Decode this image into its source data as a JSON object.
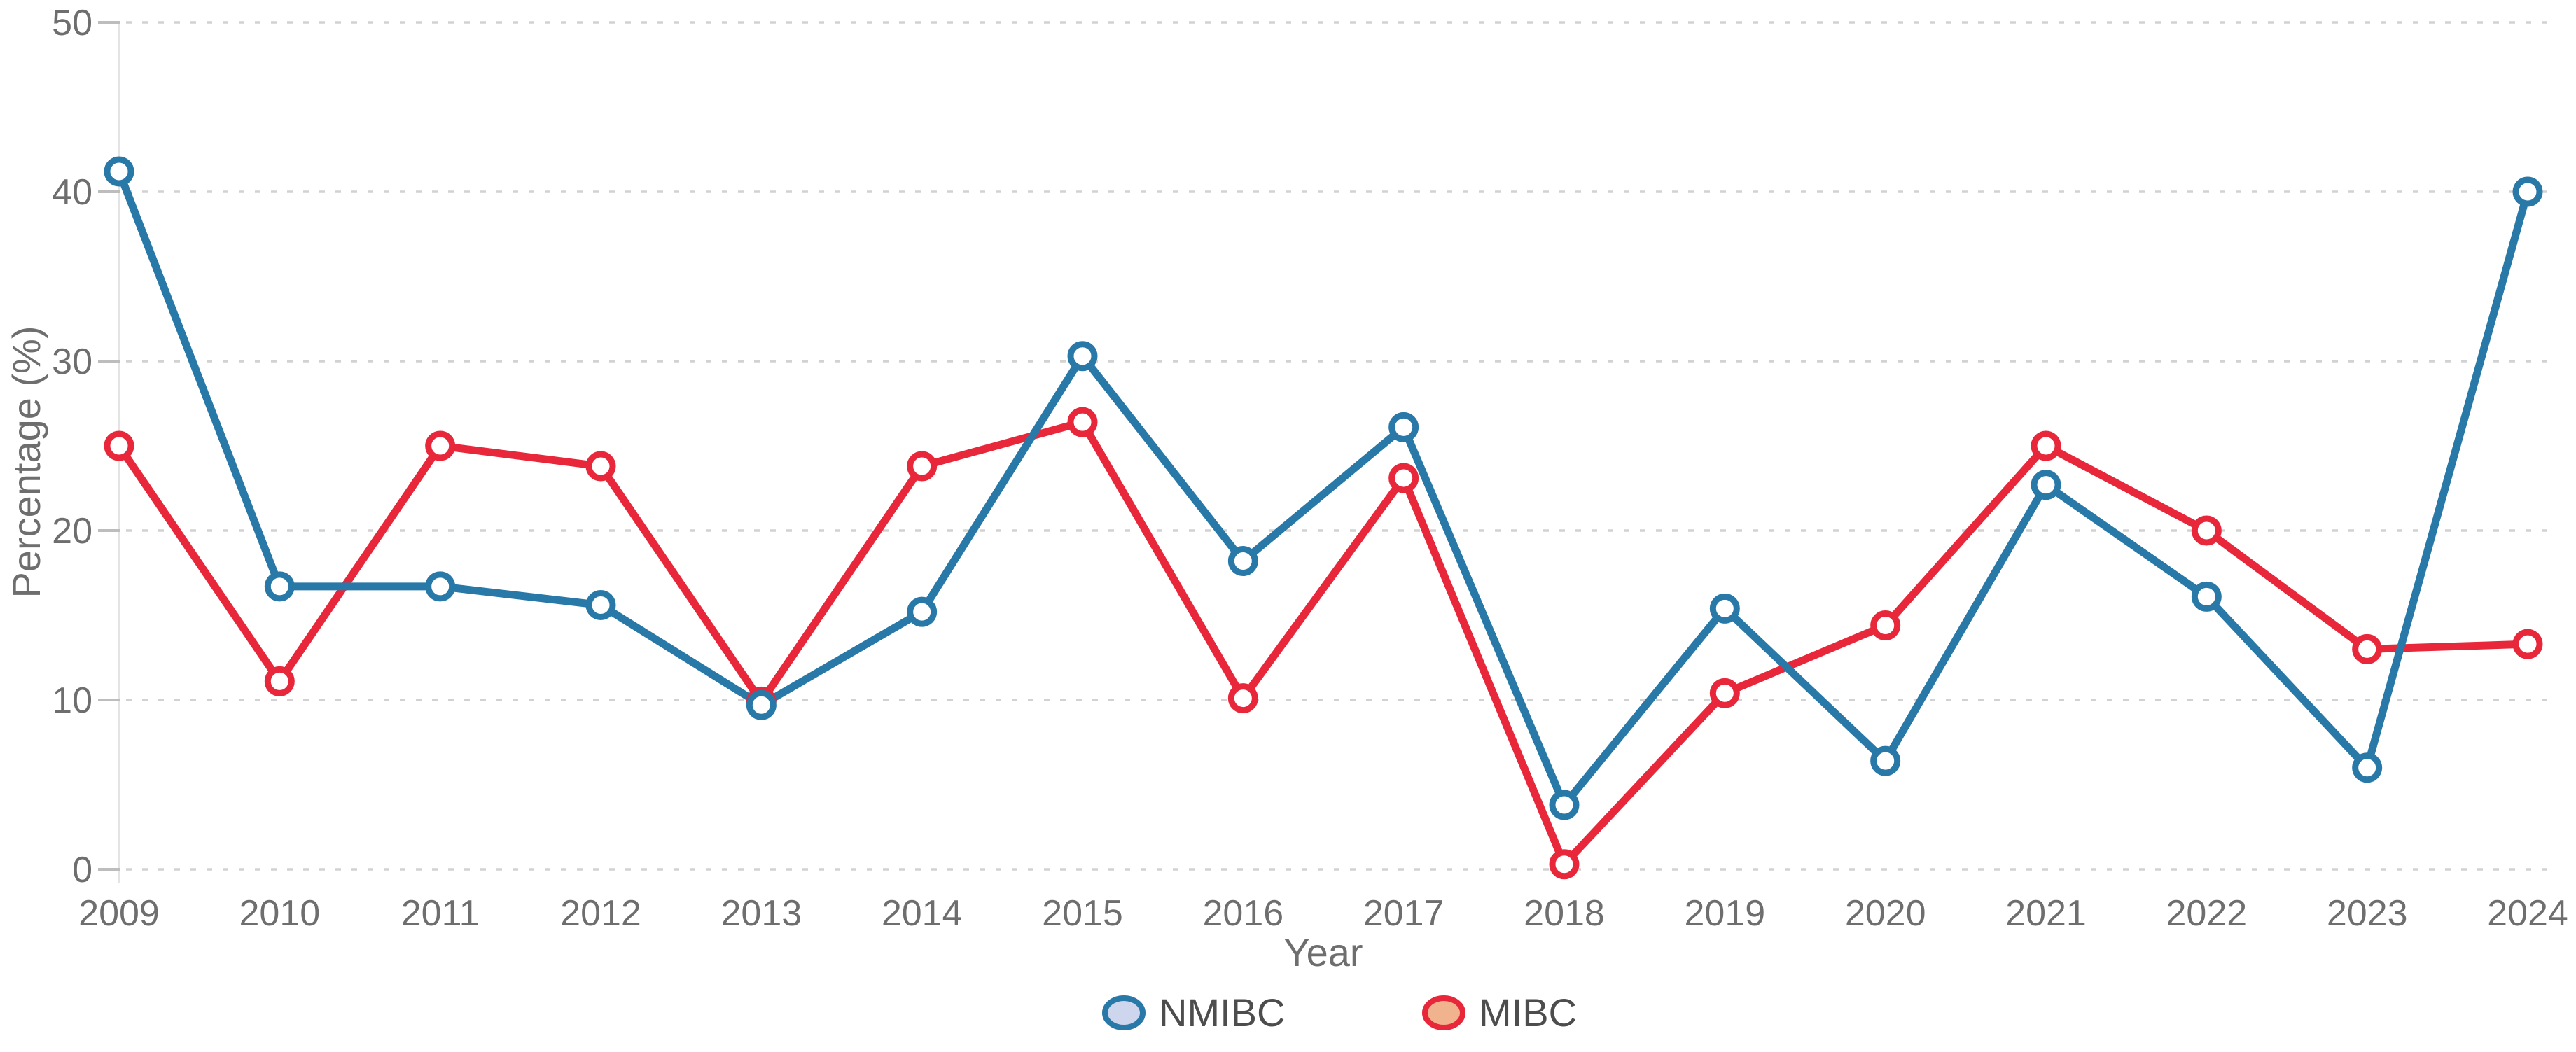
{
  "chart_data": {
    "type": "line",
    "title": "",
    "xlabel": "Year",
    "ylabel": "Percentage (%)",
    "x": [
      2009,
      2010,
      2011,
      2012,
      2013,
      2014,
      2015,
      2016,
      2017,
      2018,
      2019,
      2020,
      2021,
      2022,
      2023,
      2024
    ],
    "ylim": [
      0,
      50
    ],
    "yticks": [
      0,
      10,
      20,
      30,
      40,
      50
    ],
    "grid": "horizontal-dashed",
    "legend_position": "bottom-center",
    "series": [
      {
        "name": "MIBC",
        "color": "#e8273a",
        "marker_fill": "#ffffff",
        "legend_fill": "#f1b38e",
        "values": [
          25.0,
          11.1,
          25.0,
          23.8,
          9.9,
          23.8,
          26.4,
          10.1,
          23.1,
          0.3,
          10.4,
          14.4,
          25.0,
          20.0,
          13.0,
          13.3
        ]
      },
      {
        "name": "NMIBC",
        "color": "#2878a8",
        "marker_fill": "#ffffff",
        "legend_fill": "#cdd6ec",
        "values": [
          41.2,
          16.7,
          16.7,
          15.6,
          9.7,
          15.2,
          30.3,
          18.2,
          26.1,
          3.8,
          15.4,
          6.4,
          22.7,
          16.1,
          6.0,
          40.0
        ]
      }
    ],
    "legend_order": [
      "NMIBC",
      "MIBC"
    ],
    "style": {
      "gridline_color": "#d2d2d2",
      "axis_line_color": "#e4e4e4",
      "tick_mark_color": "#bdbdbd",
      "tick_text_color": "#6e6e6e"
    }
  }
}
